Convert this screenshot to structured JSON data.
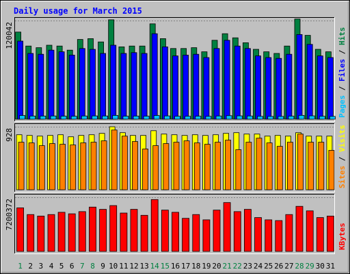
{
  "chart_data": {
    "type": "bar",
    "title": "Daily usage for March 2015",
    "colors": {
      "background": "#c0c0c0",
      "hits": "#008040",
      "files": "#0000ff",
      "pages": "#00c0ff",
      "visits": "#ffff00",
      "sites": "#ff8000",
      "kbytes": "#ff0000",
      "weekend_label": "#008040",
      "weekday_label": "#000000"
    },
    "days": [
      "1",
      "2",
      "3",
      "4",
      "5",
      "6",
      "7",
      "8",
      "9",
      "10",
      "11",
      "12",
      "13",
      "14",
      "15",
      "16",
      "17",
      "18",
      "19",
      "20",
      "21",
      "22",
      "23",
      "24",
      "25",
      "26",
      "27",
      "28",
      "29",
      "30",
      "31"
    ],
    "weekend_days": [
      "1",
      "7",
      "8",
      "14",
      "15",
      "21",
      "22",
      "28",
      "29"
    ],
    "panels": [
      {
        "id": "top",
        "max_label": "120042",
        "ymax": 120042,
        "legend": [
          "Pages",
          "Files",
          "Hits"
        ],
        "series": [
          {
            "name": "Hits",
            "color": "#008040",
            "values": [
              106000,
              89000,
              87000,
              90000,
              89000,
              84000,
              97000,
              98000,
              94000,
              121000,
              88000,
              89000,
              89000,
              116000,
              98000,
              86000,
              86000,
              87000,
              82000,
              96000,
              104000,
              99000,
              93000,
              85000,
              82000,
              80000,
              89000,
              122000,
              102000,
              85000,
              82000
            ]
          },
          {
            "name": "Files",
            "color": "#0000ff",
            "values": [
              95000,
              80000,
              79000,
              84000,
              82000,
              78000,
              86000,
              85000,
              80000,
              90000,
              80000,
              81000,
              80000,
              104000,
              88000,
              77000,
              78000,
              79000,
              75000,
              86000,
              96000,
              89000,
              86000,
              77000,
              75000,
              74000,
              79000,
              103000,
              91000,
              77000,
              75000
            ]
          },
          {
            "name": "Pages",
            "color": "#00c0ff",
            "values": [
              4500,
              3800,
              3800,
              3900,
              3700,
              3600,
              3900,
              4000,
              3900,
              4600,
              3700,
              3800,
              3700,
              4500,
              4000,
              3600,
              3600,
              3700,
              3500,
              3900,
              4300,
              4100,
              3900,
              3500,
              3400,
              3400,
              3700,
              4700,
              4100,
              3600,
              3400
            ]
          }
        ]
      },
      {
        "id": "middle",
        "max_label": "928",
        "ymax": 928,
        "legend": [
          "Sites",
          "Visits"
        ],
        "series": [
          {
            "name": "Visits",
            "color": "#ffff00",
            "values": [
              810,
              800,
              790,
              800,
              810,
              780,
              800,
              810,
              830,
              928,
              840,
              800,
              800,
              870,
              820,
              810,
              800,
              810,
              800,
              810,
              830,
              840,
              820,
              820,
              790,
              800,
              790,
              840,
              790,
              790,
              790
            ]
          },
          {
            "name": "Sites",
            "color": "#ff8000",
            "values": [
              700,
              690,
              650,
              680,
              670,
              660,
              690,
              700,
              720,
              880,
              790,
              710,
              600,
              650,
              680,
              700,
              720,
              690,
              670,
              700,
              730,
              590,
              700,
              760,
              690,
              640,
              700,
              820,
              700,
              700,
              580
            ]
          }
        ]
      },
      {
        "id": "bottom",
        "max_label": "7200372",
        "ymax": 7200372,
        "legend": [
          "KBytes"
        ],
        "series": [
          {
            "name": "KBytes",
            "color": "#ff0000",
            "values": [
              5800000,
              4900000,
              4700000,
              4900000,
              5200000,
              5000000,
              5300000,
              5900000,
              5600000,
              6100000,
              5100000,
              5600000,
              4800000,
              6900000,
              5500000,
              5200000,
              4400000,
              4900000,
              4200000,
              5500000,
              6500000,
              5300000,
              5600000,
              4500000,
              4200000,
              4100000,
              4900000,
              6000000,
              5400000,
              4500000,
              4700000
            ]
          }
        ]
      }
    ]
  }
}
